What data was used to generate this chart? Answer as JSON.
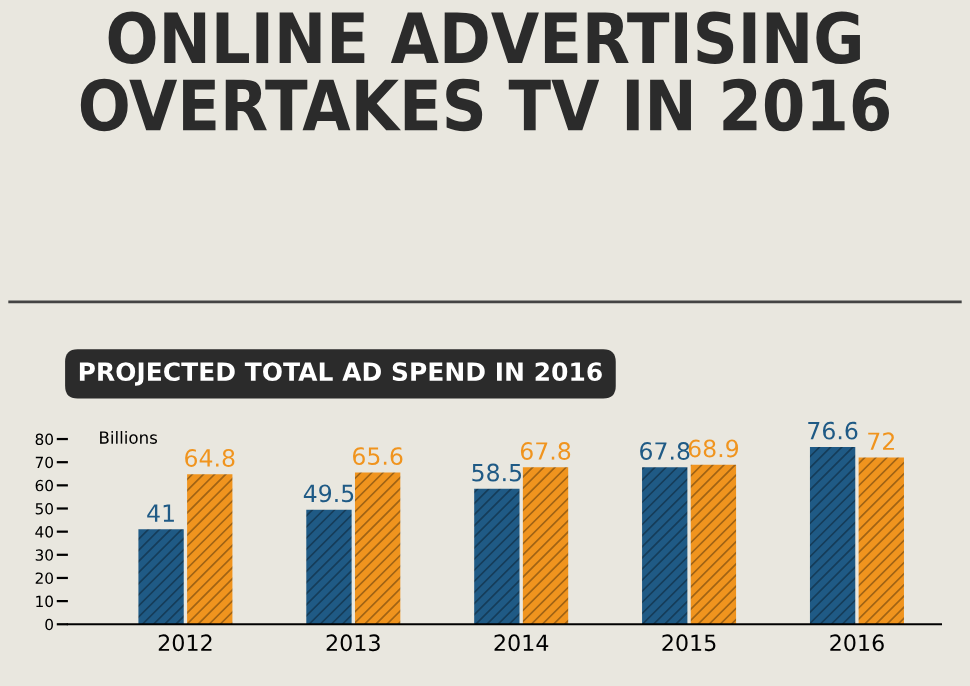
{
  "chart_data": {
    "type": "bar",
    "title": "ONLINE ADVERTISING\nOVERTAKES TV IN 2016",
    "subtitle": "PROJECTED TOTAL AD SPEND IN 2016",
    "ylabel": "Billions",
    "categories": [
      "2012",
      "2013",
      "2014",
      "2015",
      "2016"
    ],
    "series": [
      {
        "color": "#1f5a85",
        "values": [
          41,
          49.5,
          58.5,
          67.8,
          76.6
        ]
      },
      {
        "color": "#f0941e",
        "values": [
          64.8,
          65.6,
          67.8,
          68.9,
          72
        ]
      }
    ],
    "ylim": [
      0,
      80
    ],
    "yticks": [
      0,
      10,
      20,
      30,
      40,
      50,
      60,
      70,
      80
    ],
    "grid": false,
    "data_labels": true
  }
}
